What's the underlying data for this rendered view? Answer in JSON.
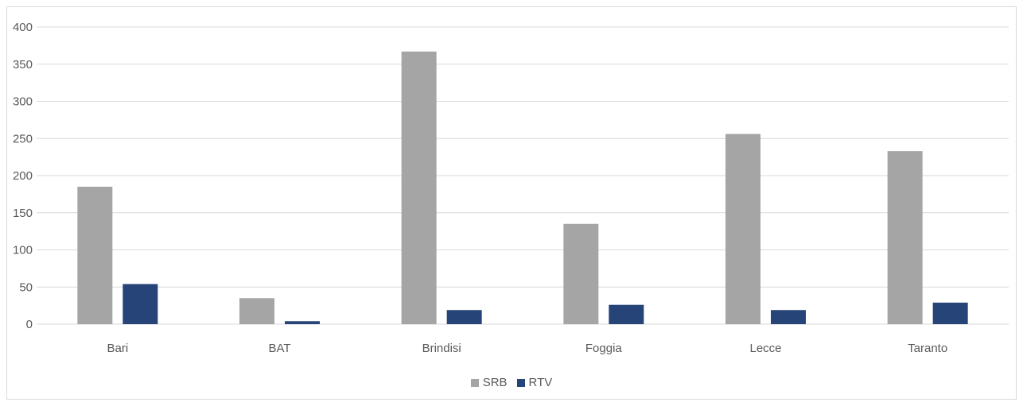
{
  "chart_data": {
    "type": "bar",
    "title": "",
    "xlabel": "",
    "ylabel": "",
    "categories": [
      "Bari",
      "BAT",
      "Brindisi",
      "Foggia",
      "Lecce",
      "Taranto"
    ],
    "series": [
      {
        "name": "SRB",
        "color": "#a5a5a5",
        "values": [
          185,
          35,
          367,
          135,
          256,
          233
        ]
      },
      {
        "name": "RTV",
        "color": "#264478",
        "values": [
          54,
          4,
          19,
          26,
          19,
          29
        ]
      }
    ],
    "ylim": [
      0,
      400
    ],
    "yticks": [
      0,
      50,
      100,
      150,
      200,
      250,
      300,
      350,
      400
    ],
    "grid": true,
    "legend_position": "bottom"
  }
}
